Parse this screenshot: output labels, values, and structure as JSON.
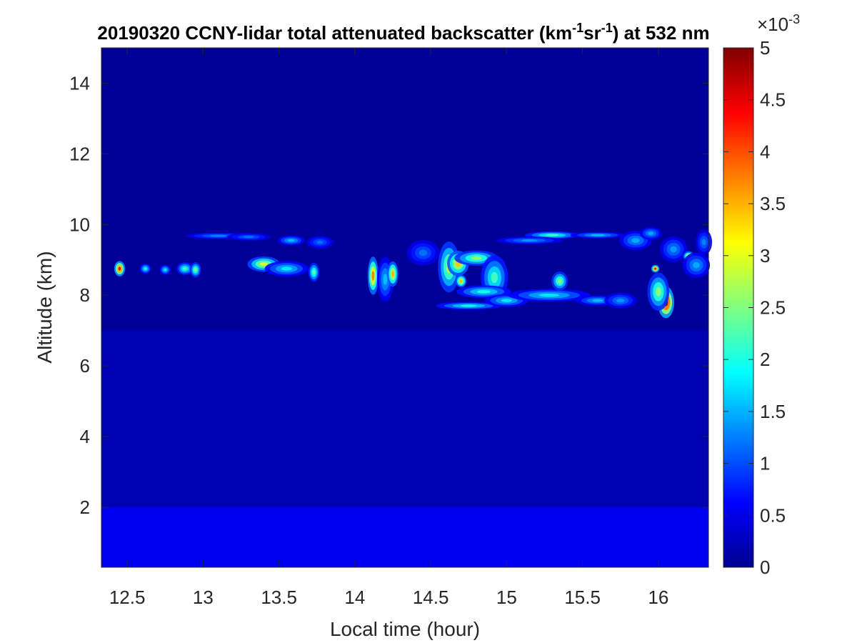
{
  "chart_data": {
    "type": "heatmap",
    "title": {
      "prefix": "20190320 CCNY-lidar total attenuated backscatter (km",
      "sup1": "-1",
      "middle": "sr",
      "sup2": "-1",
      "suffix": ") at 532 nm"
    },
    "xlabel": "Local time (hour)",
    "ylabel": "Altitude (km)",
    "xlim": [
      12.33,
      16.33
    ],
    "ylim": [
      0.3,
      15
    ],
    "xticks": [
      "12.5",
      "13",
      "13.5",
      "14",
      "14.5",
      "15",
      "15.5",
      "16"
    ],
    "xtick_values": [
      12.5,
      13,
      13.5,
      14,
      14.5,
      15,
      15.5,
      16
    ],
    "yticks": [
      "2",
      "4",
      "6",
      "8",
      "10",
      "12",
      "14"
    ],
    "ytick_values": [
      2,
      4,
      6,
      8,
      10,
      12,
      14
    ],
    "colorbar": {
      "colormap": "jet",
      "range": [
        0,
        5
      ],
      "exponent": "×10",
      "exponent_power": "-3",
      "ticks": [
        "0",
        "0.5",
        "1",
        "1.5",
        "2",
        "2.5",
        "3",
        "3.5",
        "4",
        "4.5",
        "5"
      ],
      "tick_values": [
        0,
        0.5,
        1,
        1.5,
        2,
        2.5,
        3,
        3.5,
        4,
        4.5,
        5
      ]
    },
    "background": {
      "boundary_layer_top_km": 2.0,
      "boundary_layer_value": 0.55,
      "mid_value": 0.25,
      "upper_value": 0.12
    },
    "features": [
      {
        "t": 12.45,
        "z": 8.75,
        "st": 0.02,
        "sz": 0.12,
        "v": 4.5
      },
      {
        "t": 12.62,
        "z": 8.75,
        "st": 0.02,
        "sz": 0.08,
        "v": 2.0
      },
      {
        "t": 12.75,
        "z": 8.72,
        "st": 0.02,
        "sz": 0.08,
        "v": 1.8
      },
      {
        "t": 12.88,
        "z": 8.75,
        "st": 0.03,
        "sz": 0.1,
        "v": 2.2
      },
      {
        "t": 12.95,
        "z": 8.72,
        "st": 0.02,
        "sz": 0.12,
        "v": 2.5
      },
      {
        "t": 13.1,
        "z": 9.68,
        "st": 0.12,
        "sz": 0.05,
        "v": 1.3
      },
      {
        "t": 13.3,
        "z": 9.65,
        "st": 0.08,
        "sz": 0.06,
        "v": 1.2
      },
      {
        "t": 13.4,
        "z": 8.88,
        "st": 0.06,
        "sz": 0.12,
        "v": 3.0
      },
      {
        "t": 13.55,
        "z": 8.75,
        "st": 0.08,
        "sz": 0.12,
        "v": 1.8
      },
      {
        "t": 13.58,
        "z": 9.55,
        "st": 0.05,
        "sz": 0.08,
        "v": 1.6
      },
      {
        "t": 13.73,
        "z": 8.65,
        "st": 0.02,
        "sz": 0.15,
        "v": 2.4
      },
      {
        "t": 13.77,
        "z": 9.5,
        "st": 0.05,
        "sz": 0.1,
        "v": 1.2
      },
      {
        "t": 14.12,
        "z": 8.55,
        "st": 0.02,
        "sz": 0.3,
        "v": 3.8
      },
      {
        "t": 14.2,
        "z": 8.45,
        "st": 0.03,
        "sz": 0.35,
        "v": 1.6
      },
      {
        "t": 14.25,
        "z": 8.6,
        "st": 0.02,
        "sz": 0.2,
        "v": 3.5
      },
      {
        "t": 14.45,
        "z": 9.2,
        "st": 0.06,
        "sz": 0.2,
        "v": 1.2
      },
      {
        "t": 14.62,
        "z": 8.8,
        "st": 0.04,
        "sz": 0.4,
        "v": 2.8
      },
      {
        "t": 14.68,
        "z": 8.9,
        "st": 0.04,
        "sz": 0.2,
        "v": 3.4
      },
      {
        "t": 14.7,
        "z": 8.4,
        "st": 0.02,
        "sz": 0.1,
        "v": 3.5
      },
      {
        "t": 14.8,
        "z": 9.05,
        "st": 0.08,
        "sz": 0.12,
        "v": 2.6
      },
      {
        "t": 14.92,
        "z": 8.5,
        "st": 0.05,
        "sz": 0.35,
        "v": 2.2
      },
      {
        "t": 14.85,
        "z": 8.1,
        "st": 0.1,
        "sz": 0.1,
        "v": 2.0
      },
      {
        "t": 14.75,
        "z": 7.7,
        "st": 0.12,
        "sz": 0.06,
        "v": 2.0
      },
      {
        "t": 15.0,
        "z": 7.85,
        "st": 0.08,
        "sz": 0.1,
        "v": 1.8
      },
      {
        "t": 15.3,
        "z": 9.7,
        "st": 0.1,
        "sz": 0.06,
        "v": 2.2
      },
      {
        "t": 15.15,
        "z": 9.55,
        "st": 0.12,
        "sz": 0.06,
        "v": 1.4
      },
      {
        "t": 15.28,
        "z": 8.0,
        "st": 0.15,
        "sz": 0.1,
        "v": 1.8
      },
      {
        "t": 15.35,
        "z": 8.4,
        "st": 0.03,
        "sz": 0.15,
        "v": 2.6
      },
      {
        "t": 15.6,
        "z": 7.85,
        "st": 0.08,
        "sz": 0.08,
        "v": 1.6
      },
      {
        "t": 15.6,
        "z": 9.7,
        "st": 0.1,
        "sz": 0.05,
        "v": 1.6
      },
      {
        "t": 15.75,
        "z": 7.85,
        "st": 0.06,
        "sz": 0.12,
        "v": 1.4
      },
      {
        "t": 15.85,
        "z": 9.55,
        "st": 0.06,
        "sz": 0.15,
        "v": 1.5
      },
      {
        "t": 15.95,
        "z": 9.75,
        "st": 0.04,
        "sz": 0.1,
        "v": 1.5
      },
      {
        "t": 16.05,
        "z": 7.8,
        "st": 0.03,
        "sz": 0.25,
        "v": 5.0
      },
      {
        "t": 16.0,
        "z": 8.1,
        "st": 0.04,
        "sz": 0.3,
        "v": 2.6
      },
      {
        "t": 15.98,
        "z": 8.75,
        "st": 0.015,
        "sz": 0.06,
        "v": 4.5
      },
      {
        "t": 16.1,
        "z": 9.3,
        "st": 0.05,
        "sz": 0.2,
        "v": 1.4
      },
      {
        "t": 16.2,
        "z": 9.1,
        "st": 0.02,
        "sz": 0.08,
        "v": 3.5
      },
      {
        "t": 16.25,
        "z": 8.85,
        "st": 0.05,
        "sz": 0.2,
        "v": 1.5
      },
      {
        "t": 16.3,
        "z": 9.5,
        "st": 0.03,
        "sz": 0.2,
        "v": 1.3
      }
    ]
  }
}
